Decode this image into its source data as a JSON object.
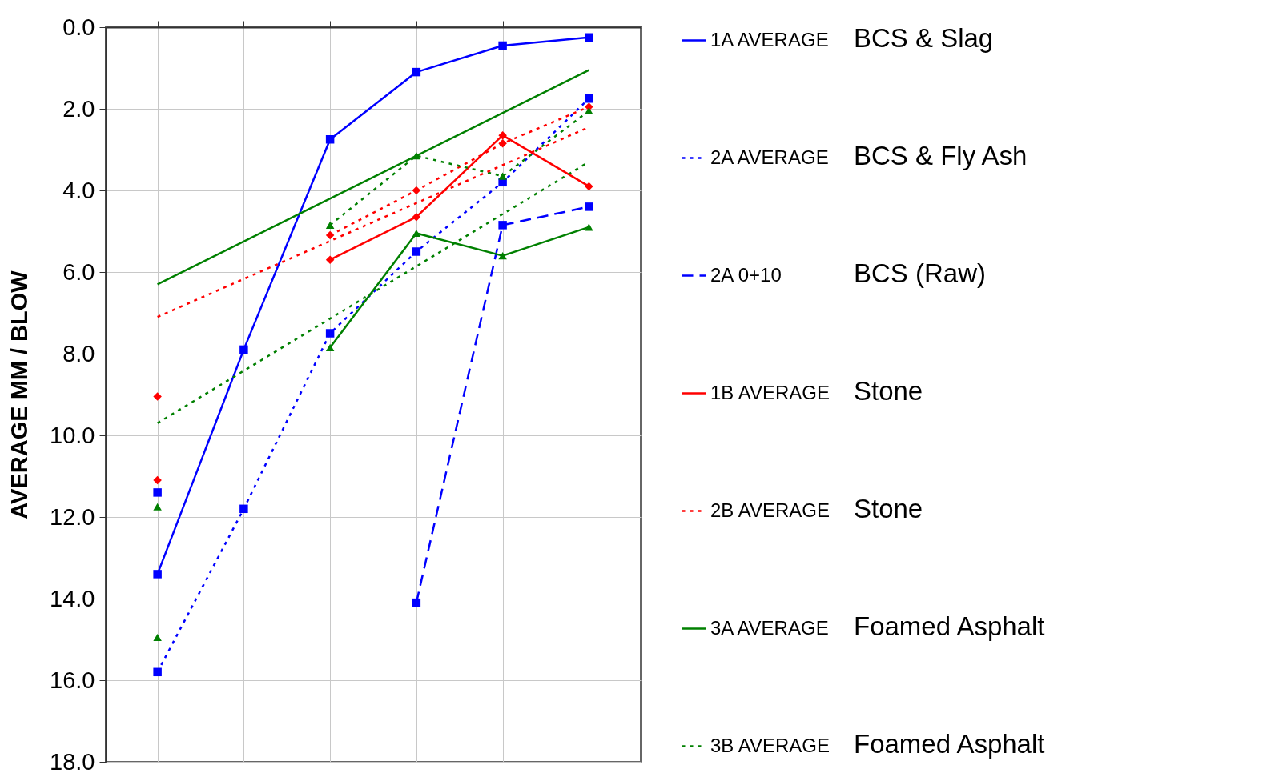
{
  "chart_data": {
    "type": "line",
    "ylabel": "AVERAGE MM / BLOW",
    "categories": [
      null,
      null,
      null,
      null,
      null,
      null
    ],
    "ylim": [
      18,
      0
    ],
    "yticks": [
      {
        "value": 0,
        "label": "0.0"
      },
      {
        "value": 2,
        "label": "2.0"
      },
      {
        "value": 4,
        "label": "4.0"
      },
      {
        "value": 6,
        "label": "6.0"
      },
      {
        "value": 8,
        "label": "8.0"
      },
      {
        "value": 10,
        "label": "10.0"
      },
      {
        "value": 12,
        "label": "12.0"
      },
      {
        "value": 14,
        "label": "14.0"
      },
      {
        "value": 16,
        "label": "16.0"
      },
      {
        "value": 18,
        "label": "18.0"
      }
    ],
    "grid": true,
    "legend": "right",
    "series": [
      {
        "name": "1A AVERAGE",
        "color": "#0000ff",
        "line_style": "solid",
        "marker": "square",
        "values": [
          13.4,
          7.9,
          2.75,
          1.1,
          0.45,
          0.25
        ]
      },
      {
        "name": "2A AVERAGE",
        "color": "#0000ff",
        "line_style": "dotted",
        "marker": "square",
        "values": [
          15.8,
          11.8,
          7.5,
          5.5,
          3.8,
          1.75
        ]
      },
      {
        "name": "2A 0+10",
        "color": "#0000ff",
        "line_style": "dashed",
        "marker": "square",
        "values": [
          11.4,
          null,
          null,
          14.1,
          4.85,
          4.4
        ]
      },
      {
        "name": "1B AVERAGE",
        "color": "#ff0000",
        "line_style": "solid",
        "marker": "diamond",
        "values": [
          9.05,
          null,
          5.7,
          4.65,
          2.65,
          3.9
        ]
      },
      {
        "name": "2B AVERAGE",
        "color": "#ff0000",
        "line_style": "dotted",
        "marker": "diamond",
        "values": [
          11.1,
          null,
          5.1,
          4.0,
          2.85,
          1.95
        ]
      },
      {
        "name": "3A AVERAGE",
        "color": "#008000",
        "line_style": "solid",
        "marker": "triangle",
        "values": [
          11.75,
          null,
          7.85,
          5.05,
          5.6,
          4.9
        ]
      },
      {
        "name": "3B AVERAGE",
        "color": "#008000",
        "line_style": "dotted",
        "marker": "triangle",
        "values": [
          14.95,
          null,
          4.85,
          3.15,
          3.65,
          2.05
        ]
      },
      {
        "type": "line",
        "color": "#008000",
        "line_style": "solid",
        "marker": "none",
        "values": [
          6.3,
          null,
          null,
          null,
          null,
          1.05
        ]
      },
      {
        "type": "line",
        "color": "#ff0000",
        "line_style": "dotted",
        "marker": "none",
        "values": [
          7.1,
          null,
          null,
          null,
          null,
          2.45
        ]
      },
      {
        "type": "line",
        "color": "#008000",
        "line_style": "dotted",
        "marker": "none",
        "values": [
          9.7,
          null,
          null,
          null,
          null,
          3.3
        ]
      }
    ],
    "annotations": [
      "BCS & Slag",
      "BCS & Fly Ash",
      "BCS (Raw)",
      "Stone",
      "Stone",
      "Foamed Asphalt",
      "Foamed Asphalt"
    ]
  }
}
